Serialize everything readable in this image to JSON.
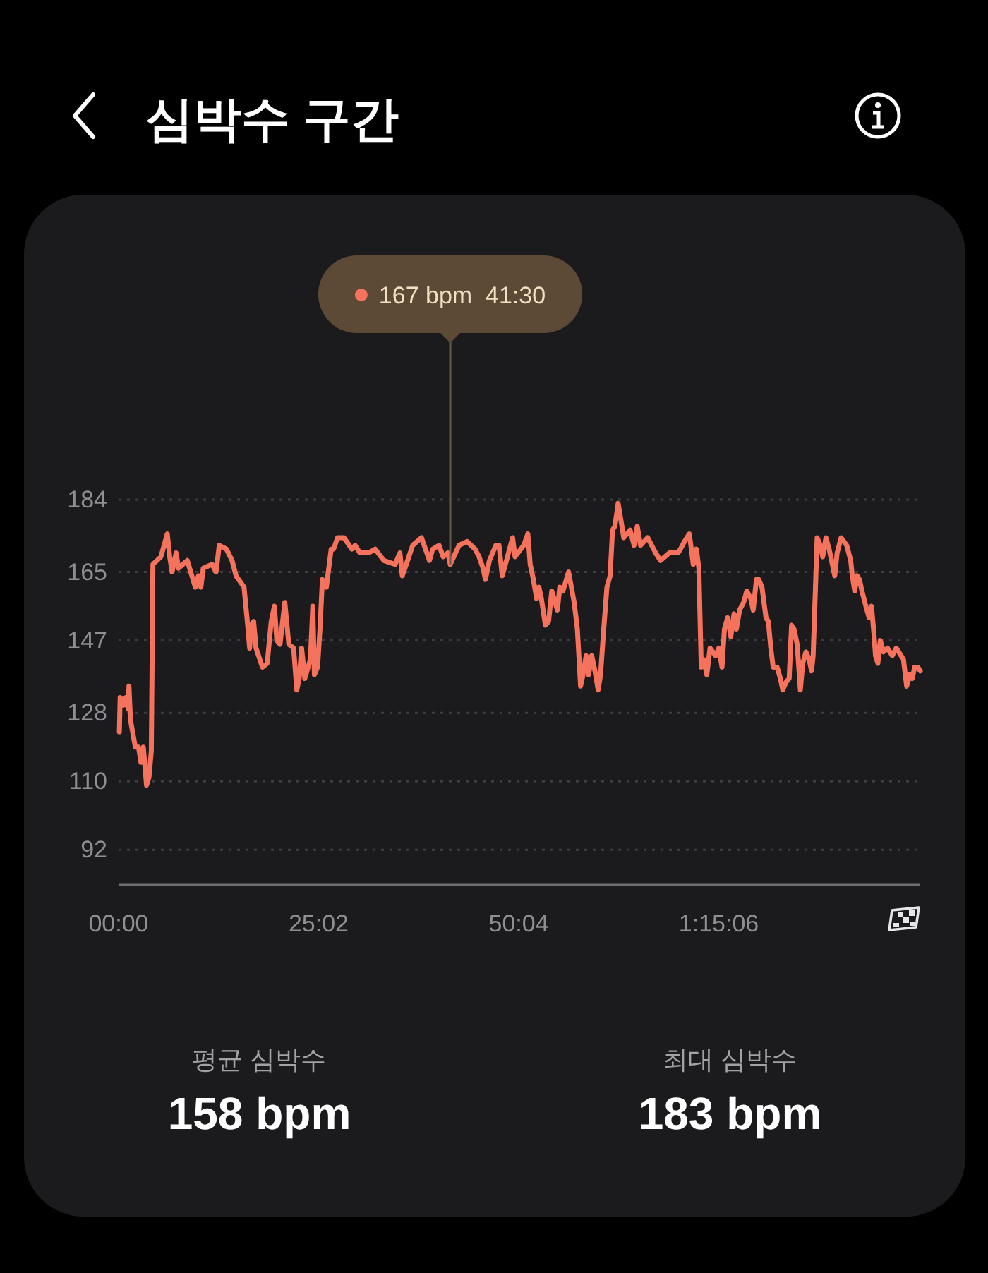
{
  "chart_data": {
    "type": "line",
    "title": "심박수 구간",
    "x": [
      0.1,
      0.2,
      0.6,
      0.9,
      1.2,
      1.3,
      1.5,
      2.1,
      2.5,
      2.8,
      3.1,
      3.5,
      3.8,
      4.1,
      4.3,
      5.3,
      6.1,
      6.4,
      6.7,
      7.2,
      7.5,
      8.6,
      9.6,
      10.0,
      10.3,
      10.6,
      11.7,
      12.2,
      12.6,
      13.5,
      14.2,
      14.7,
      15.7,
      16.2,
      16.4,
      16.6,
      16.9,
      17.2,
      18.0,
      18.6,
      19.1,
      19.5,
      19.8,
      20.2,
      20.8,
      21.3,
      21.9,
      22.3,
      22.6,
      22.9,
      23.3,
      24.0,
      24.3,
      24.5,
      24.9,
      25.2,
      25.5,
      26.0,
      26.6,
      26.9,
      27.4,
      28.2,
      29.2,
      29.6,
      30.2,
      31.3,
      32.1,
      33.2,
      34.6,
      35.2,
      35.5,
      36.0,
      36.8,
      37.9,
      38.9,
      39.3,
      40.1,
      40.6,
      41.2,
      41.5,
      42.6,
      43.6,
      44.6,
      45.1,
      45.6,
      45.9,
      46.4,
      47.2,
      47.6,
      48.0,
      48.4,
      49.3,
      49.6,
      50.7,
      51.2,
      51.5,
      51.9,
      52.3,
      52.6,
      52.9,
      53.4,
      53.8,
      54.2,
      54.9,
      55.2,
      55.6,
      56.3,
      57.0,
      57.4,
      57.8,
      58.1,
      58.5,
      58.8,
      59.2,
      59.6,
      60.0,
      60.3,
      60.7,
      61.1,
      61.5,
      61.8,
      62.1,
      62.5,
      62.9,
      63.2,
      64.0,
      64.5,
      64.9,
      65.3,
      66.2,
      67.2,
      67.8,
      68.9,
      70.0,
      70.3,
      70.8,
      71.4,
      71.6,
      71.9,
      72.3,
      72.6,
      72.9,
      73.2,
      73.6,
      74.0,
      74.7,
      75.1,
      75.5,
      75.8,
      76.2,
      76.6,
      77.0,
      77.3,
      77.7,
      78.2,
      78.6,
      79.1,
      79.4,
      79.8,
      80.1,
      80.5,
      81.0,
      81.3,
      81.6,
      81.9,
      82.4,
      82.8,
      83.1,
      83.5,
      83.9,
      84.2,
      84.5,
      84.9,
      85.3,
      85.6,
      86.0,
      86.4,
      86.7,
      86.9,
      87.4,
      87.8,
      88.1,
      88.5,
      88.9,
      89.2,
      89.6,
      89.9,
      90.4,
      91.1,
      91.6,
      91.8,
      92.1,
      92.4,
      92.7,
      93.0,
      93.5,
      93.9,
      94.2,
      94.5,
      94.7,
      95.0,
      95.3,
      95.7,
      96.2,
      96.8,
      97.3,
      97.9,
      98.2,
      98.6,
      99.0,
      99.3,
      99.6,
      100.0,
      100.3
    ],
    "series": [
      {
        "color": "#f5735d",
        "values": [
          123,
          132,
          130,
          132,
          129,
          135,
          126,
          119,
          119,
          115,
          119,
          109,
          111,
          118,
          167,
          169,
          175,
          169,
          165,
          170,
          166,
          168,
          161,
          164,
          161,
          166,
          167,
          165,
          172,
          171,
          168,
          164,
          161,
          150,
          145,
          151,
          152,
          145,
          140,
          141,
          152,
          156,
          147,
          146,
          157,
          146,
          145,
          134,
          137,
          145,
          137,
          142,
          156,
          138,
          140,
          150,
          163,
          161,
          171,
          171,
          174,
          174,
          171,
          172,
          170,
          170,
          171,
          168,
          167,
          170,
          164,
          167,
          172,
          174,
          168,
          171,
          172,
          169,
          170,
          167,
          172,
          173,
          171,
          169,
          166,
          163,
          168,
          172,
          172,
          164,
          167,
          174,
          169,
          172,
          175,
          167,
          163,
          158,
          161,
          158,
          151,
          152,
          160,
          155,
          161,
          160,
          165,
          157,
          150,
          135,
          138,
          143,
          138,
          143,
          139,
          134,
          138,
          150,
          161,
          164,
          176,
          177,
          183,
          178,
          174,
          176,
          172,
          177,
          172,
          174,
          170,
          168,
          170,
          170,
          171,
          173,
          175,
          172,
          167,
          171,
          166,
          140,
          142,
          138,
          145,
          143,
          145,
          140,
          150,
          153,
          148,
          154,
          150,
          155,
          157,
          160,
          158,
          155,
          163,
          163,
          161,
          153,
          152,
          145,
          140,
          140,
          137,
          134,
          136,
          137,
          151,
          150,
          146,
          134,
          141,
          144,
          142,
          139,
          143,
          174,
          172,
          169,
          174,
          171,
          168,
          164,
          170,
          174,
          172,
          168,
          164,
          160,
          164,
          163,
          160,
          156,
          153,
          156,
          149,
          143,
          141,
          147,
          144,
          145,
          143,
          145,
          143,
          142,
          135,
          138,
          137,
          140,
          140,
          139
        ]
      }
    ],
    "xlim": [
      0,
      100.3
    ],
    "xticks": [
      {
        "value": 0,
        "label": "00:00"
      },
      {
        "value": 25.03,
        "label": "25:02"
      },
      {
        "value": 50.07,
        "label": "50:04"
      },
      {
        "value": 75.1,
        "label": "1:15:06"
      }
    ],
    "ylim": [
      82.8,
      184
    ],
    "yticks": [
      92,
      110,
      128,
      147,
      165,
      184
    ],
    "grid": "y",
    "line_style": "solid",
    "annotations": [
      {
        "text": "167 bpm  41:30",
        "x": 41.5,
        "y": 167
      },
      "평균 심박수",
      "158 bpm",
      "최대 심박수",
      "183 bpm"
    ]
  }
}
